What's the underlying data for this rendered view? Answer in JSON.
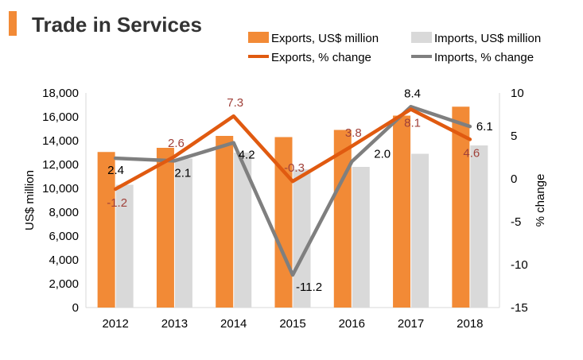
{
  "chart_data": {
    "type": "bar-line-combo",
    "title": "Trade in Services",
    "categories": [
      "2012",
      "2013",
      "2014",
      "2015",
      "2016",
      "2017",
      "2018"
    ],
    "ylabel_left": "US$ million",
    "ylabel_right": "% change",
    "ylim_left": [
      0,
      18000
    ],
    "ylim_right": [
      -15,
      10
    ],
    "yticks_left": [
      "0",
      "2,000",
      "4,000",
      "6,000",
      "8,000",
      "10,000",
      "12,000",
      "14,000",
      "16,000",
      "18,000"
    ],
    "yticks_right": [
      "-15",
      "-10",
      "-5",
      "0",
      "5",
      "10"
    ],
    "grid": false,
    "legend_position": "top",
    "series": [
      {
        "name": "Exports, US$ million",
        "type": "bar",
        "axis": "left",
        "color": "#f28a36",
        "values": [
          13050,
          13400,
          14400,
          14300,
          14900,
          16100,
          16850
        ]
      },
      {
        "name": "Imports, US$ million",
        "type": "bar",
        "axis": "left",
        "color": "#d9d9d9",
        "values": [
          10300,
          12500,
          13000,
          11600,
          11800,
          12900,
          13600
        ]
      },
      {
        "name": "Exports, % change",
        "type": "line",
        "axis": "right",
        "color": "#e05a10",
        "values": [
          -1.2,
          2.6,
          7.3,
          -0.3,
          3.8,
          8.1,
          4.6
        ],
        "labels": [
          "-1.2",
          "2.6",
          "7.3",
          "-0.3",
          "3.8",
          "8.1",
          "4.6"
        ]
      },
      {
        "name": "Imports, % change",
        "type": "line",
        "axis": "right",
        "color": "#7f7f7f",
        "values": [
          2.4,
          2.1,
          4.2,
          -11.2,
          2.0,
          8.4,
          6.1
        ],
        "labels": [
          "2.4",
          "2.1",
          "4.2",
          "-11.2",
          "2.0",
          "8.4",
          "6.1"
        ]
      }
    ]
  },
  "colors": {
    "accent": "#f28a36",
    "title_text": "#333333",
    "export_label": "#a0413a"
  }
}
